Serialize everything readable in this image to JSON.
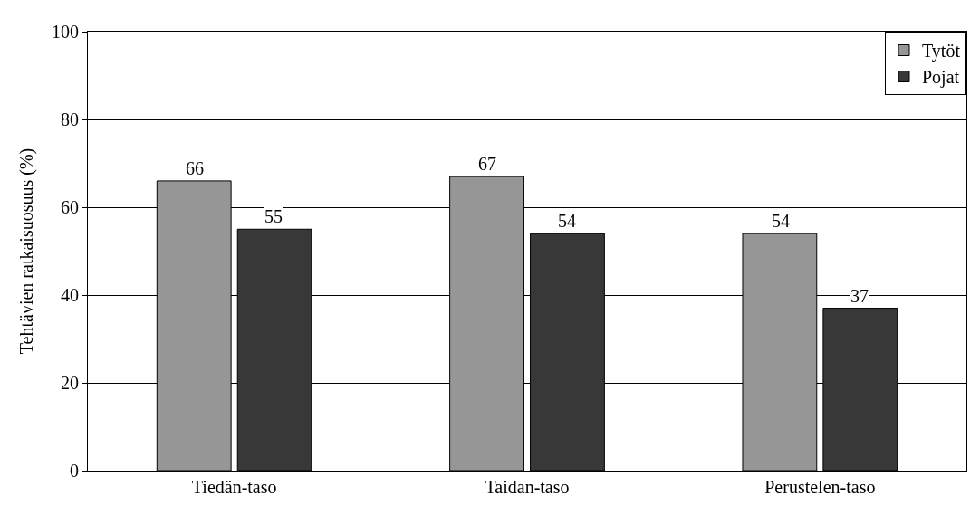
{
  "chart_data": {
    "type": "bar",
    "ylabel": "Tehtävien ratkaisuosuus (%)",
    "categories": [
      "Tiedän-taso",
      "Taidan-taso",
      "Perustelen-taso"
    ],
    "series": [
      {
        "name": "Tytöt",
        "color": "#969696",
        "values": [
          66,
          67,
          54
        ]
      },
      {
        "name": "Pojat",
        "color": "#383838",
        "values": [
          55,
          54,
          37
        ]
      }
    ],
    "ylim": [
      0,
      100
    ],
    "yticks": [
      0,
      20,
      40,
      60,
      80,
      100
    ],
    "grid": "y",
    "legend": "top right",
    "data_labels": true
  }
}
